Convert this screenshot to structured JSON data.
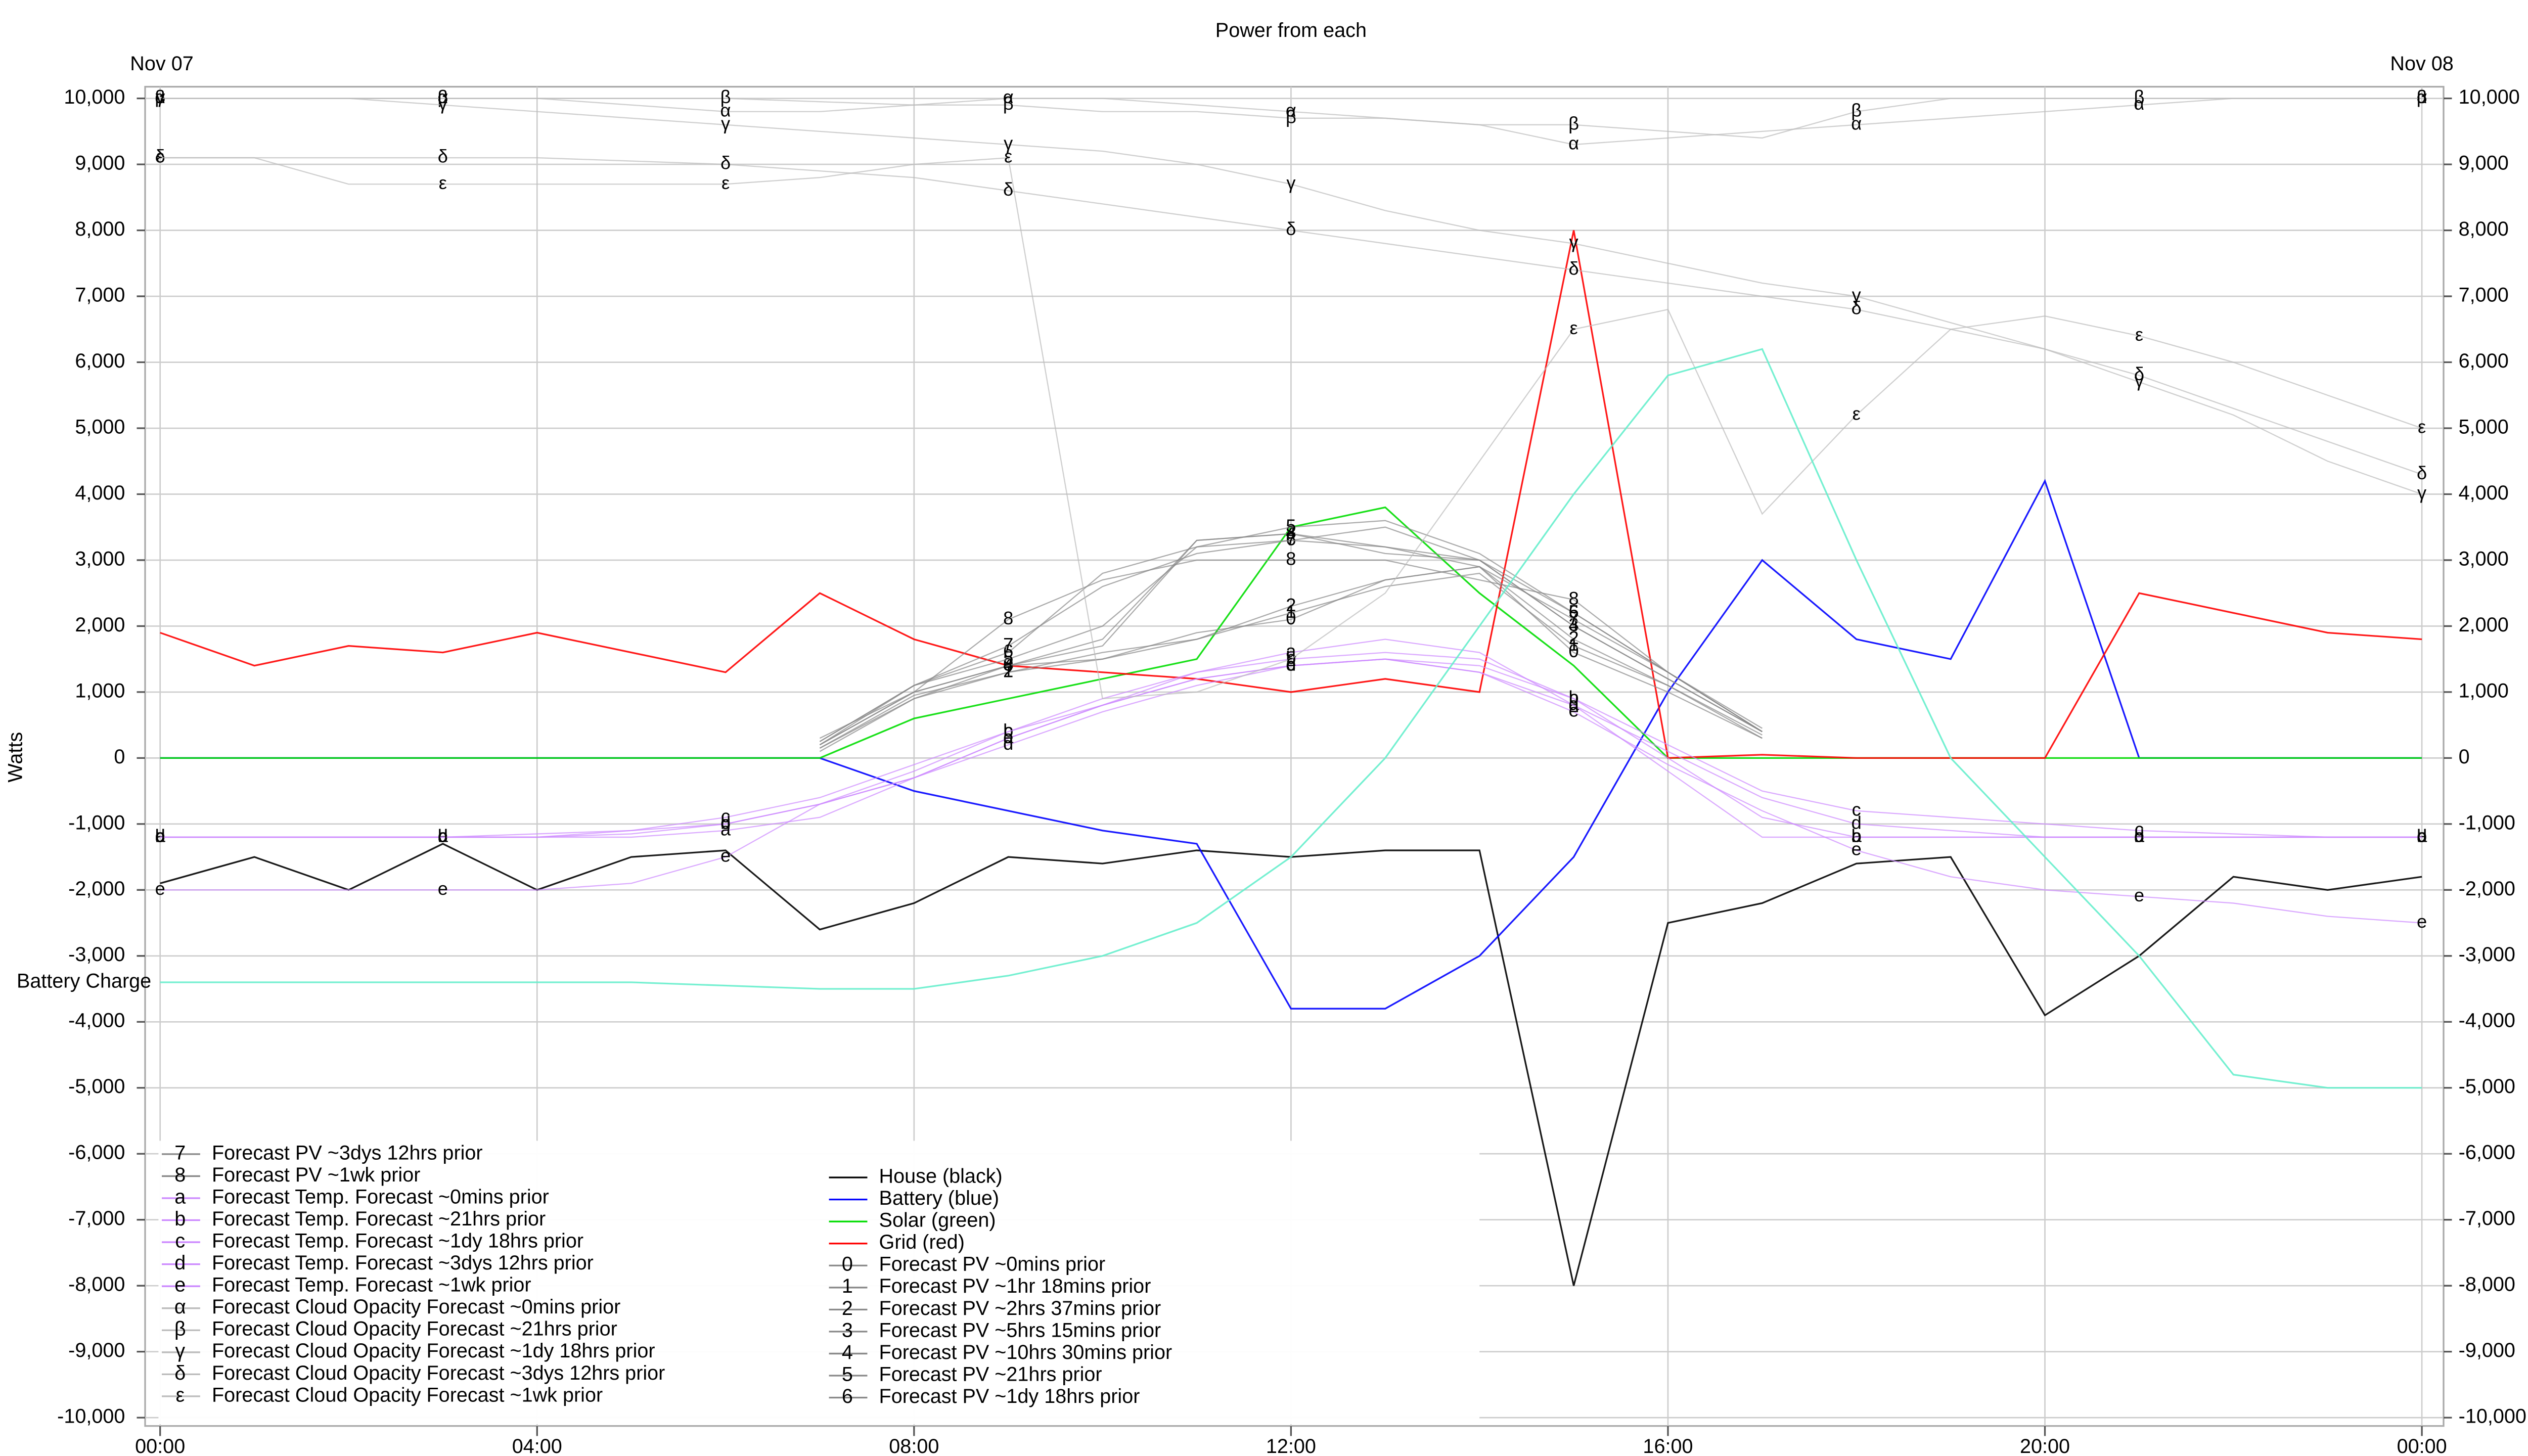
{
  "chart_data": {
    "type": "line",
    "title": "Power from each",
    "ylabel": "Watts",
    "date_labels": [
      "Nov 07",
      "Nov 08"
    ],
    "x": [
      0,
      1,
      2,
      3,
      4,
      5,
      6,
      7,
      8,
      9,
      10,
      11,
      12,
      13,
      14,
      15,
      16,
      17,
      18,
      19,
      20,
      21,
      22,
      23,
      24
    ],
    "xlim": [
      0,
      24
    ],
    "xticks": [
      {
        "value": 0,
        "label": "00:00"
      },
      {
        "value": 4,
        "label": "04:00"
      },
      {
        "value": 8,
        "label": "08:00"
      },
      {
        "value": 12,
        "label": "12:00"
      },
      {
        "value": 16,
        "label": "16:00"
      },
      {
        "value": 20,
        "label": "20:00"
      },
      {
        "value": 24,
        "label": "00:00"
      }
    ],
    "ylim": [
      -10000,
      10000
    ],
    "yticks": [
      {
        "value": -10000,
        "label": "-10,000"
      },
      {
        "value": -9000,
        "label": "-9,000"
      },
      {
        "value": -8000,
        "label": "-8,000"
      },
      {
        "value": -7000,
        "label": "-7,000"
      },
      {
        "value": -6000,
        "label": "-6,000"
      },
      {
        "value": -5000,
        "label": "-5,000"
      },
      {
        "value": -4000,
        "label": "-4,000"
      },
      {
        "value": -3000,
        "label": "-3,000"
      },
      {
        "value": -2000,
        "label": "-2,000"
      },
      {
        "value": -1000,
        "label": "-1,000"
      },
      0,
      {
        "value": 1000,
        "label": "1,000"
      },
      {
        "value": 2000,
        "label": "2,000"
      },
      {
        "value": 3000,
        "label": "3,000"
      },
      {
        "value": 4000,
        "label": "4,000"
      },
      {
        "value": 5000,
        "label": "5,000"
      },
      {
        "value": 6000,
        "label": "6,000"
      },
      {
        "value": 7000,
        "label": "7,000"
      },
      {
        "value": 8000,
        "label": "8,000"
      },
      {
        "value": 9000,
        "label": "9,000"
      },
      {
        "value": 10000,
        "label": "10,000"
      }
    ],
    "grid": true,
    "series": [
      {
        "name": "House (black)",
        "color": "#000000",
        "values": [
          -1900,
          -1500,
          -2000,
          -1300,
          -2000,
          -1500,
          -1400,
          -2600,
          -2200,
          -1500,
          -1600,
          -1400,
          -1500,
          -1400,
          -1400,
          -8000,
          -2500,
          -2200,
          -1600,
          -1500,
          -3900,
          -3000,
          -1800,
          -2000,
          -1800
        ]
      },
      {
        "name": "Battery (blue)",
        "color": "#0000ff",
        "values": [
          0,
          0,
          0,
          0,
          0,
          0,
          0,
          0,
          -500,
          -800,
          -1100,
          -1300,
          -3800,
          -3800,
          -3000,
          -1500,
          1000,
          3000,
          1800,
          1500,
          4200,
          0,
          0,
          0,
          0
        ]
      },
      {
        "name": "Solar (green)",
        "color": "#00dd00",
        "values": [
          0,
          0,
          0,
          0,
          0,
          0,
          0,
          0,
          600,
          900,
          1200,
          1500,
          3500,
          3800,
          2500,
          1400,
          0,
          0,
          0,
          0,
          0,
          0,
          0,
          0,
          0
        ]
      },
      {
        "name": "Grid (red)",
        "color": "#ff0000",
        "values": [
          1900,
          1400,
          1700,
          1600,
          1900,
          1600,
          1300,
          2500,
          1800,
          1400,
          1300,
          1200,
          1000,
          1200,
          1000,
          8000,
          0,
          50,
          0,
          0,
          0,
          2500,
          2200,
          1900,
          1800
        ]
      },
      {
        "name": "Forecast PV ~0mins prior",
        "marker": "0",
        "color": "#888888",
        "values": [
          null,
          null,
          null,
          null,
          null,
          null,
          null,
          100,
          900,
          1400,
          1500,
          1900,
          2100,
          2700,
          2900,
          1600,
          1000,
          300,
          null,
          null,
          null,
          null,
          null,
          null,
          null
        ]
      },
      {
        "name": "Forecast PV ~1hr 18mins prior",
        "marker": "1",
        "color": "#888888",
        "values": [
          null,
          null,
          null,
          null,
          null,
          null,
          null,
          150,
          900,
          1300,
          1500,
          1800,
          2200,
          2600,
          2800,
          1700,
          1100,
          350,
          null,
          null,
          null,
          null,
          null,
          null,
          null
        ]
      },
      {
        "name": "Forecast PV ~2hrs 37mins prior",
        "marker": "2",
        "color": "#888888",
        "values": [
          null,
          null,
          null,
          null,
          null,
          null,
          null,
          150,
          950,
          1300,
          1600,
          1800,
          2300,
          2700,
          2900,
          1800,
          1100,
          300,
          null,
          null,
          null,
          null,
          null,
          null,
          null
        ]
      },
      {
        "name": "Forecast PV ~5hrs 15mins prior",
        "marker": "3",
        "color": "#888888",
        "values": [
          null,
          null,
          null,
          null,
          null,
          null,
          null,
          200,
          1000,
          1400,
          1700,
          3300,
          3400,
          3100,
          3000,
          2000,
          1200,
          400,
          null,
          null,
          null,
          null,
          null,
          null,
          null
        ]
      },
      {
        "name": "Forecast PV ~10hrs 30mins prior",
        "marker": "4",
        "color": "#888888",
        "values": [
          null,
          null,
          null,
          null,
          null,
          null,
          null,
          200,
          1000,
          1400,
          1800,
          3300,
          3400,
          3200,
          3000,
          2000,
          1200,
          400,
          null,
          null,
          null,
          null,
          null,
          null,
          null
        ]
      },
      {
        "name": "Forecast PV ~21hrs prior",
        "marker": "5",
        "color": "#888888",
        "values": [
          null,
          null,
          null,
          null,
          null,
          null,
          null,
          200,
          1100,
          1500,
          2000,
          3200,
          3500,
          3600,
          3100,
          2200,
          1300,
          400,
          null,
          null,
          null,
          null,
          null,
          null,
          null
        ]
      },
      {
        "name": "Forecast PV ~1dy 18hrs prior",
        "marker": "6",
        "color": "#888888",
        "values": [
          null,
          null,
          null,
          null,
          null,
          null,
          null,
          250,
          1100,
          1600,
          2800,
          3200,
          3300,
          3500,
          3000,
          2200,
          1300,
          450,
          null,
          null,
          null,
          null,
          null,
          null,
          null
        ]
      },
      {
        "name": "Forecast PV ~3dys 12hrs prior",
        "marker": "7",
        "color": "#888888",
        "values": [
          null,
          null,
          null,
          null,
          null,
          null,
          null,
          250,
          1100,
          1700,
          2600,
          3100,
          3300,
          3200,
          2900,
          2100,
          1300,
          400,
          null,
          null,
          null,
          null,
          null,
          null,
          null
        ]
      },
      {
        "name": "Forecast PV ~1wk prior",
        "marker": "8",
        "color": "#888888",
        "values": [
          null,
          null,
          null,
          null,
          null,
          null,
          null,
          300,
          1000,
          2100,
          2700,
          3000,
          3000,
          3000,
          2700,
          2400,
          1300,
          400,
          null,
          null,
          null,
          null,
          null,
          null,
          null
        ]
      },
      {
        "name": "Forecast Temp. Forecast ~0mins prior",
        "marker": "a",
        "color": "#cc88ff",
        "values": [
          -1200,
          -1200,
          -1200,
          -1200,
          -1200,
          -1200,
          -1100,
          -900,
          -300,
          300,
          800,
          1300,
          1600,
          1800,
          1600,
          800,
          -200,
          -1200,
          -1200,
          -1200,
          -1200,
          -1200,
          -1200,
          -1200,
          -1200
        ]
      },
      {
        "name": "Forecast Temp. Forecast ~21hrs prior",
        "marker": "b",
        "color": "#cc88ff",
        "values": [
          -1200,
          -1200,
          -1200,
          -1200,
          -1200,
          -1150,
          -1000,
          -700,
          -200,
          400,
          900,
          1300,
          1500,
          1600,
          1500,
          900,
          0,
          -900,
          -1200,
          -1200,
          -1200,
          -1200,
          -1200,
          -1200,
          -1200
        ]
      },
      {
        "name": "Forecast Temp. Forecast ~1dy 18hrs prior",
        "marker": "c",
        "color": "#cc88ff",
        "values": [
          -1200,
          -1200,
          -1200,
          -1200,
          -1150,
          -1100,
          -900,
          -600,
          -100,
          400,
          800,
          1200,
          1400,
          1500,
          1400,
          900,
          200,
          -500,
          -800,
          -900,
          -1000,
          -1100,
          -1150,
          -1200,
          -1200
        ]
      },
      {
        "name": "Forecast Temp. Forecast ~3dys 12hrs prior",
        "marker": "d",
        "color": "#cc88ff",
        "values": [
          -1200,
          -1200,
          -1200,
          -1200,
          -1200,
          -1100,
          -1000,
          -700,
          -300,
          200,
          700,
          1100,
          1400,
          1500,
          1300,
          800,
          100,
          -600,
          -1000,
          -1100,
          -1200,
          -1200,
          -1200,
          -1200,
          -1200
        ]
      },
      {
        "name": "Forecast Temp. Forecast ~1wk prior",
        "marker": "e",
        "color": "#cc88ff",
        "values": [
          -2000,
          -2000,
          -2000,
          -2000,
          -2000,
          -1900,
          -1500,
          -700,
          -300,
          300,
          800,
          1200,
          1400,
          1500,
          1300,
          700,
          -100,
          -800,
          -1400,
          -1800,
          -2000,
          -2100,
          -2200,
          -2400,
          -2500
        ]
      },
      {
        "name": "Forecast Cloud Opacity Forecast ~0mins prior",
        "marker": "α",
        "color": "#bbbbbb",
        "values": [
          10000,
          10000,
          10000,
          10000,
          10000,
          9900,
          9800,
          9800,
          9900,
          10000,
          10000,
          9900,
          9800,
          9700,
          9600,
          9300,
          9400,
          9500,
          9600,
          9700,
          9800,
          9900,
          10000,
          10000,
          10000
        ]
      },
      {
        "name": "Forecast Cloud Opacity Forecast ~21hrs prior",
        "marker": "β",
        "color": "#bbbbbb",
        "values": [
          10000,
          10000,
          10000,
          10000,
          10000,
          10000,
          10000,
          9950,
          9900,
          9900,
          9800,
          9800,
          9700,
          9700,
          9600,
          9600,
          9500,
          9400,
          9800,
          10000,
          10000,
          10000,
          10000,
          10000,
          10000
        ]
      },
      {
        "name": "Forecast Cloud Opacity Forecast ~1dy 18hrs prior",
        "marker": "γ",
        "color": "#bbbbbb",
        "values": [
          10000,
          10000,
          10000,
          9900,
          9800,
          9700,
          9600,
          9500,
          9400,
          9300,
          9200,
          9000,
          8700,
          8300,
          8000,
          7800,
          7500,
          7200,
          7000,
          6600,
          6200,
          5700,
          5200,
          4500,
          4000
        ]
      },
      {
        "name": "Forecast Cloud Opacity Forecast ~3dys 12hrs prior",
        "marker": "δ",
        "color": "#bbbbbb",
        "values": [
          9100,
          9100,
          9100,
          9100,
          9100,
          9050,
          9000,
          8900,
          8800,
          8600,
          8400,
          8200,
          8000,
          7800,
          7600,
          7400,
          7200,
          7000,
          6800,
          6500,
          6200,
          5800,
          5300,
          4800,
          4300
        ]
      },
      {
        "name": "Forecast Cloud Opacity Forecast ~1wk prior",
        "marker": "ε",
        "color": "#bbbbbb",
        "values": [
          9100,
          9100,
          8700,
          8700,
          8700,
          8700,
          8700,
          8800,
          9000,
          9100,
          900,
          1000,
          1500,
          2500,
          4500,
          6500,
          6800,
          3700,
          5200,
          6500,
          6700,
          6400,
          6000,
          5500,
          5000
        ]
      },
      {
        "name": "Battery Charge",
        "color": "#66eecc",
        "inline_label": true,
        "values": [
          -3400,
          -3400,
          -3400,
          -3400,
          -3400,
          -3400,
          -3450,
          -3500,
          -3500,
          -3300,
          -3000,
          -2500,
          -1500,
          0,
          2000,
          4000,
          5800,
          6200,
          3000,
          0,
          -1500,
          -3000,
          -4800,
          -5000,
          -5000
        ]
      }
    ]
  }
}
